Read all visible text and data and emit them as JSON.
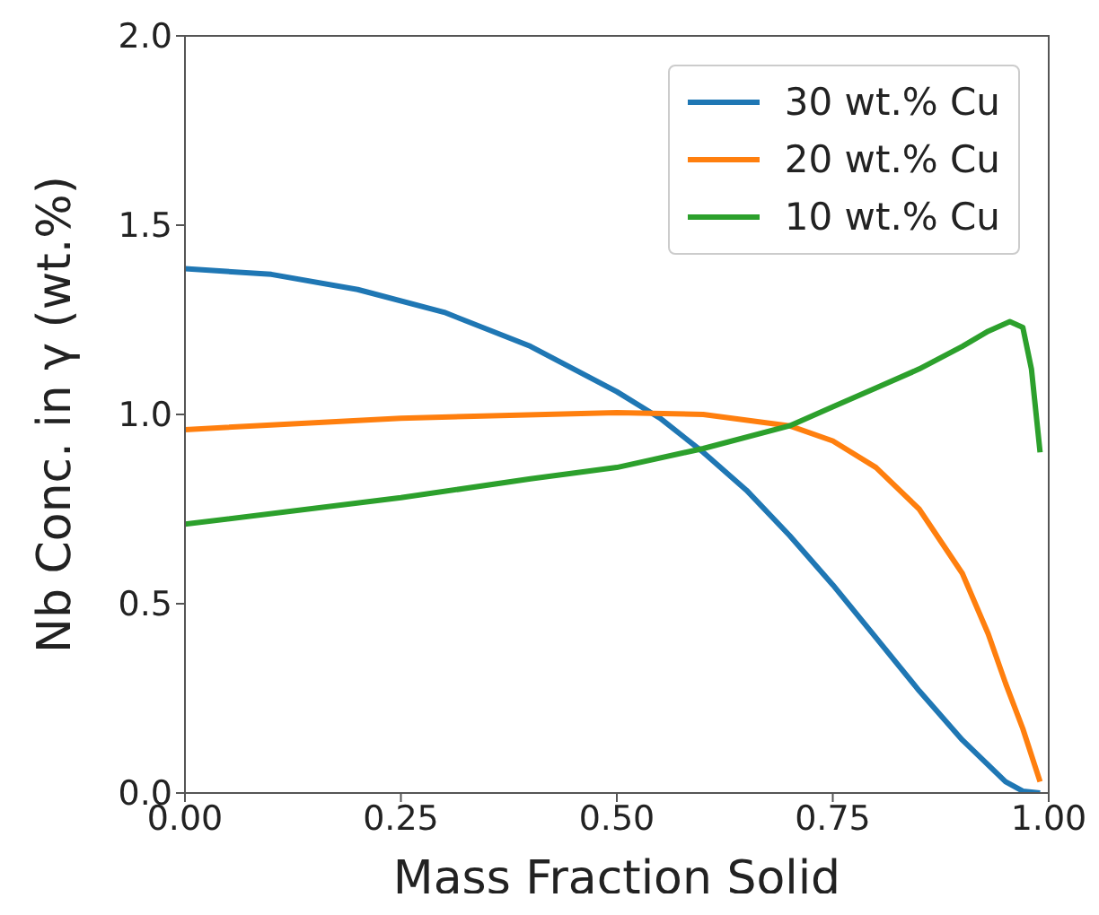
{
  "chart_data": {
    "type": "line",
    "xlabel": "Mass Fraction Solid",
    "ylabel": "Nb Conc. in γ (wt.%)",
    "xlim": [
      0,
      1.0
    ],
    "ylim": [
      0,
      2.0
    ],
    "xticks": [
      {
        "value": 0,
        "label": "0.00"
      },
      {
        "value": 0.25,
        "label": "0.25"
      },
      {
        "value": 0.5,
        "label": "0.50"
      },
      {
        "value": 0.75,
        "label": "0.75"
      },
      {
        "value": 1.0,
        "label": "1.00"
      }
    ],
    "yticks": [
      {
        "value": 0,
        "label": "0.0"
      },
      {
        "value": 0.5,
        "label": "0.5"
      },
      {
        "value": 1.0,
        "label": "1.0"
      },
      {
        "value": 1.5,
        "label": "1.5"
      },
      {
        "value": 2.0,
        "label": "2.0"
      }
    ],
    "grid": false,
    "legend": "top right",
    "marker": "none",
    "line_style": "solid",
    "series": [
      {
        "name": "30 wt.% Cu",
        "color": "#1f77b4",
        "x": [
          0,
          0.1,
          0.2,
          0.3,
          0.4,
          0.5,
          0.55,
          0.6,
          0.65,
          0.7,
          0.75,
          0.8,
          0.85,
          0.9,
          0.95,
          0.97,
          0.99
        ],
        "values": [
          1.385,
          1.37,
          1.33,
          1.27,
          1.18,
          1.06,
          0.99,
          0.9,
          0.8,
          0.68,
          0.55,
          0.41,
          0.27,
          0.14,
          0.03,
          0.005,
          0
        ]
      },
      {
        "name": "20 wt.% Cu",
        "color": "#ff7f0e",
        "x": [
          0,
          0.25,
          0.5,
          0.6,
          0.7,
          0.75,
          0.8,
          0.85,
          0.9,
          0.93,
          0.95,
          0.97,
          0.99
        ],
        "values": [
          0.96,
          0.99,
          1.005,
          1.0,
          0.97,
          0.93,
          0.86,
          0.75,
          0.58,
          0.42,
          0.29,
          0.17,
          0.03
        ]
      },
      {
        "name": "10 wt.% Cu",
        "color": "#2ca02c",
        "x": [
          0,
          0.25,
          0.4,
          0.5,
          0.6,
          0.7,
          0.75,
          0.8,
          0.85,
          0.9,
          0.93,
          0.955,
          0.97,
          0.98,
          0.99
        ],
        "values": [
          0.71,
          0.78,
          0.83,
          0.86,
          0.91,
          0.97,
          1.02,
          1.07,
          1.12,
          1.18,
          1.22,
          1.245,
          1.23,
          1.12,
          0.9
        ]
      }
    ]
  }
}
